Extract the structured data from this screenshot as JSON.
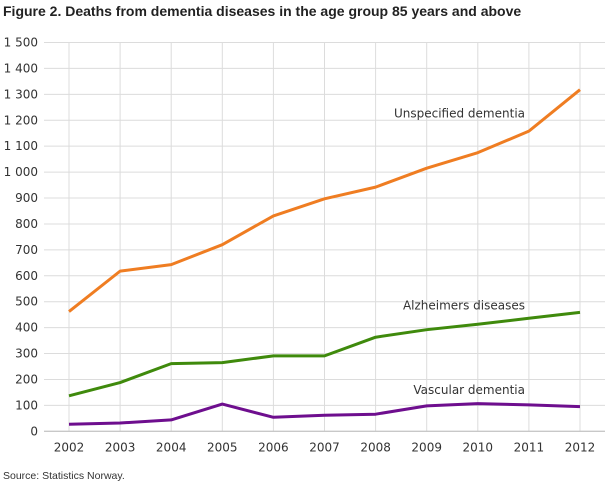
{
  "title": "Figure 2. Deaths from dementia diseases in the age group 85 years and above",
  "source": "Source: Statistics Norway.",
  "chart_data": {
    "type": "line",
    "title": "Figure 2. Deaths from dementia diseases in the age group 85 years and above",
    "xlabel": "",
    "ylabel": "",
    "x": [
      "2002",
      "2003",
      "2004",
      "2005",
      "2006",
      "2007",
      "2008",
      "2009",
      "2010",
      "2011",
      "2012"
    ],
    "ylim": [
      0,
      1500
    ],
    "yticks": [
      0,
      100,
      200,
      300,
      400,
      500,
      600,
      700,
      800,
      900,
      1000,
      1100,
      1200,
      1300,
      1400,
      1500
    ],
    "ytick_labels": [
      "0",
      "100",
      "200",
      "300",
      "400",
      "500",
      "600",
      "700",
      "800",
      "900",
      "1 000",
      "1 100",
      "1 200",
      "1 300",
      "1 400",
      "1 500"
    ],
    "grid": true,
    "legend": "inline labels",
    "series": [
      {
        "name": "Unspecified dementia",
        "color": "#ef7d22",
        "values": [
          462,
          618,
          643,
          720,
          831,
          897,
          942,
          1015,
          1075,
          1158,
          1318
        ]
      },
      {
        "name": "Alzheimers diseases",
        "color": "#3f8a0c",
        "values": [
          137,
          188,
          261,
          265,
          291,
          291,
          363,
          392,
          413,
          436,
          459
        ]
      },
      {
        "name": "Vascular dementia",
        "color": "#6e0e8e",
        "values": [
          27,
          32,
          44,
          105,
          54,
          62,
          66,
          98,
          107,
          102,
          95
        ]
      }
    ]
  }
}
